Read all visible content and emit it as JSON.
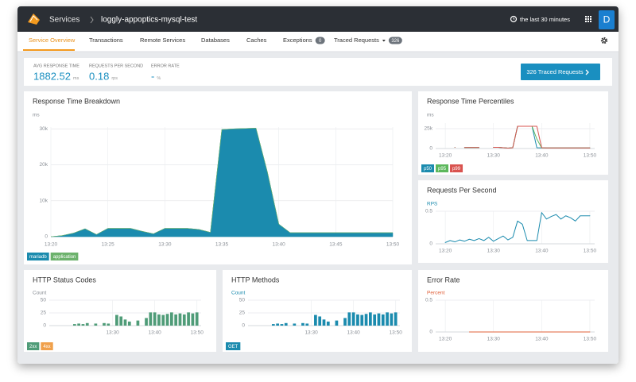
{
  "header": {
    "section": "Services",
    "service": "loggly-appoptics-mysql-test",
    "time_range": "the last 30 minutes",
    "avatar": "D"
  },
  "tabs": [
    {
      "label": "Service Overview"
    },
    {
      "label": "Transactions"
    },
    {
      "label": "Remote Services"
    },
    {
      "label": "Databases"
    },
    {
      "label": "Caches"
    },
    {
      "label": "Exceptions",
      "badge": 0
    },
    {
      "label": "Traced Requests",
      "badge": 326
    }
  ],
  "summary": {
    "metrics": [
      {
        "label": "AVG RESPONSE TIME",
        "value": 1882.52,
        "unit": "ms"
      },
      {
        "label": "REQUESTS PER SECOND",
        "value": 0.18,
        "unit": "rps"
      },
      {
        "label": "ERROR RATE",
        "value": "-",
        "unit": "%"
      }
    ],
    "button": "326 Traced Requests"
  },
  "chart_data": [
    {
      "type": "area",
      "stacked": true,
      "title": "Response Time Breakdown",
      "y_label": "ms",
      "grid": true,
      "legend": "bottom-left",
      "x": [
        "13:20",
        "13:21",
        "13:22",
        "13:23",
        "13:24",
        "13:25",
        "13:26",
        "13:27",
        "13:28",
        "13:29",
        "13:30",
        "13:31",
        "13:32",
        "13:33",
        "13:34",
        "13:35",
        "13:36",
        "13:37",
        "13:38",
        "13:39",
        "13:40",
        "13:41",
        "13:42",
        "13:43",
        "13:44",
        "13:45",
        "13:46",
        "13:47",
        "13:48",
        "13:49",
        "13:50"
      ],
      "series": [
        {
          "name": "mariadb",
          "color": "#1b8bae",
          "values": [
            0,
            300,
            1000,
            2200,
            600,
            2300,
            2300,
            2300,
            1500,
            800,
            2300,
            2300,
            2300,
            2000,
            1200,
            29800,
            30000,
            30100,
            30200,
            18000,
            3500,
            1100,
            1100,
            1100,
            1100,
            1100,
            1100,
            1100,
            1100,
            1100,
            1100
          ]
        },
        {
          "name": "application",
          "color": "#6cb26c",
          "values": [
            0,
            0,
            0,
            0,
            0,
            0,
            0,
            0,
            0,
            0,
            0,
            0,
            0,
            0,
            0,
            0,
            0,
            0,
            0,
            0,
            0,
            0,
            0,
            0,
            0,
            0,
            0,
            0,
            0,
            0,
            0
          ]
        }
      ],
      "xlim": [
        "13:20",
        "13:50"
      ],
      "xticks": [
        "13:20",
        "13:25",
        "13:30",
        "13:35",
        "13:40",
        "13:45",
        "13:50"
      ],
      "ylim": [
        0,
        30500
      ],
      "yticks": [
        0,
        {
          "value": 10000,
          "label": "10k"
        },
        {
          "value": 20000,
          "label": "20k"
        },
        {
          "value": 30000,
          "label": "30k"
        }
      ]
    },
    {
      "type": "line",
      "title": "Response Time Percentiles",
      "y_label": "ms",
      "grid": true,
      "legend": "bottom-left",
      "x": [
        "13:20",
        "13:21",
        "13:22",
        "13:23",
        "13:24",
        "13:25",
        "13:26",
        "13:27",
        "13:28",
        "13:29",
        "13:30",
        "13:31",
        "13:32",
        "13:33",
        "13:34",
        "13:35",
        "13:36",
        "13:37",
        "13:38",
        "13:39",
        "13:40",
        "13:41",
        "13:42",
        "13:43",
        "13:44",
        "13:45",
        "13:46",
        "13:47",
        "13:48",
        "13:49",
        "13:50"
      ],
      "series": [
        {
          "name": "p50",
          "color": "#1b8bae",
          "values": [
            null,
            null,
            1500,
            null,
            1200,
            1200,
            1200,
            1200,
            null,
            null,
            1500,
            1500,
            1000,
            500,
            1000,
            28000,
            28000,
            28000,
            28000,
            1000,
            800,
            800,
            800,
            800,
            800,
            800,
            800,
            800,
            800,
            800,
            800
          ]
        },
        {
          "name": "p95",
          "color": "#5cb85c",
          "values": [
            null,
            null,
            1500,
            null,
            1200,
            1200,
            1200,
            1200,
            null,
            null,
            1500,
            1500,
            1000,
            500,
            1000,
            28000,
            28000,
            28000,
            28000,
            12000,
            800,
            800,
            800,
            800,
            800,
            800,
            800,
            800,
            800,
            800,
            800
          ]
        },
        {
          "name": "p99",
          "color": "#d9534f",
          "values": [
            null,
            null,
            1500,
            null,
            1200,
            1200,
            1200,
            1200,
            null,
            null,
            1500,
            1500,
            1000,
            500,
            1000,
            28000,
            28000,
            28000,
            28000,
            28000,
            1000,
            800,
            800,
            800,
            800,
            800,
            800,
            800,
            800,
            800,
            800
          ]
        }
      ],
      "xlim": [
        "13:18",
        "13:51"
      ],
      "xticks": [
        "13:20",
        "13:30",
        "13:40",
        "13:50"
      ],
      "ylim": [
        0,
        32000
      ],
      "yticks": [
        0,
        {
          "value": 25000,
          "label": "25k"
        }
      ]
    },
    {
      "type": "line",
      "title": "Requests Per Second",
      "y_label": "RPS",
      "y_label_color": "#1b8bae",
      "grid": true,
      "x": [
        "13:20",
        "13:21",
        "13:22",
        "13:23",
        "13:24",
        "13:25",
        "13:26",
        "13:27",
        "13:28",
        "13:29",
        "13:30",
        "13:31",
        "13:32",
        "13:33",
        "13:34",
        "13:35",
        "13:36",
        "13:37",
        "13:38",
        "13:39",
        "13:40",
        "13:41",
        "13:42",
        "13:43",
        "13:44",
        "13:45",
        "13:46",
        "13:47",
        "13:48",
        "13:49",
        "13:50"
      ],
      "series": [
        {
          "color": "#1b8bae",
          "values": [
            0.02,
            0.05,
            0.03,
            0.06,
            0.04,
            0.07,
            0.05,
            0.08,
            0.05,
            0.1,
            0.04,
            0.08,
            0.12,
            0.06,
            0.1,
            0.35,
            0.3,
            0.05,
            0.05,
            0.05,
            0.48,
            0.38,
            0.42,
            0.45,
            0.38,
            0.43,
            0.4,
            0.35,
            0.43,
            0.43,
            0.43
          ]
        }
      ],
      "xlim": [
        "13:18",
        "13:51"
      ],
      "xticks": [
        "13:20",
        "13:30",
        "13:40",
        "13:50"
      ],
      "ylim": [
        0,
        0.5
      ],
      "yticks": [
        0,
        0.5
      ]
    },
    {
      "type": "bar",
      "stacked": true,
      "title": "HTTP Status Codes",
      "y_label": "Count",
      "grid": true,
      "legend": "bottom-left",
      "x": [
        "13:20",
        "13:21",
        "13:22",
        "13:23",
        "13:24",
        "13:25",
        "13:26",
        "13:27",
        "13:28",
        "13:29",
        "13:30",
        "13:31",
        "13:32",
        "13:33",
        "13:34",
        "13:35",
        "13:36",
        "13:37",
        "13:38",
        "13:39",
        "13:40",
        "13:41",
        "13:42",
        "13:43",
        "13:44",
        "13:45",
        "13:46",
        "13:47",
        "13:48",
        "13:49",
        "13:50"
      ],
      "series": [
        {
          "name": "2xx",
          "color": "#4f9c78",
          "values": [
            null,
            3,
            4,
            3,
            5,
            null,
            4,
            null,
            5,
            4,
            null,
            21,
            18,
            12,
            8,
            null,
            10,
            null,
            15,
            26,
            26,
            22,
            21,
            23,
            26,
            22,
            24,
            22,
            26,
            24,
            26
          ]
        },
        {
          "name": "4xx",
          "color": "#f0a04b",
          "values": [
            0,
            0,
            0,
            0,
            0,
            0,
            0,
            0,
            0,
            0,
            0,
            0,
            0,
            0,
            0,
            0,
            0,
            0,
            0,
            0,
            0,
            0,
            0,
            0,
            0,
            0,
            0,
            0,
            0,
            0,
            0
          ]
        }
      ],
      "xlim": [
        "13:15",
        "13:51"
      ],
      "xticks": [
        "13:30",
        "13:40",
        "13:50"
      ],
      "ylim": [
        0,
        50
      ],
      "yticks": [
        0,
        25,
        50
      ]
    },
    {
      "type": "bar",
      "title": "HTTP Methods",
      "y_label": "Count",
      "y_label_color": "#1b8bae",
      "grid": true,
      "legend": "bottom-left",
      "x": [
        "13:20",
        "13:21",
        "13:22",
        "13:23",
        "13:24",
        "13:25",
        "13:26",
        "13:27",
        "13:28",
        "13:29",
        "13:30",
        "13:31",
        "13:32",
        "13:33",
        "13:34",
        "13:35",
        "13:36",
        "13:37",
        "13:38",
        "13:39",
        "13:40",
        "13:41",
        "13:42",
        "13:43",
        "13:44",
        "13:45",
        "13:46",
        "13:47",
        "13:48",
        "13:49",
        "13:50"
      ],
      "series": [
        {
          "name": "GET",
          "color": "#1b8bae",
          "values": [
            null,
            3,
            4,
            3,
            5,
            null,
            4,
            null,
            5,
            4,
            null,
            21,
            18,
            12,
            8,
            null,
            10,
            null,
            15,
            26,
            26,
            22,
            21,
            23,
            26,
            22,
            24,
            22,
            26,
            24,
            26
          ]
        }
      ],
      "xlim": [
        "13:15",
        "13:51"
      ],
      "xticks": [
        "13:30",
        "13:40",
        "13:50"
      ],
      "ylim": [
        0,
        50
      ],
      "yticks": [
        0,
        25,
        50
      ]
    },
    {
      "type": "line",
      "title": "Error Rate",
      "y_label": "Percent",
      "y_label_color": "#e0603a",
      "grid": true,
      "x": [
        "13:20",
        "13:21",
        "13:22",
        "13:23",
        "13:24",
        "13:25",
        "13:26",
        "13:27",
        "13:28",
        "13:29",
        "13:30",
        "13:31",
        "13:32",
        "13:33",
        "13:34",
        "13:35",
        "13:36",
        "13:37",
        "13:38",
        "13:39",
        "13:40",
        "13:41",
        "13:42",
        "13:43",
        "13:44",
        "13:45",
        "13:46",
        "13:47",
        "13:48",
        "13:49",
        "13:50"
      ],
      "series": [
        {
          "color": "#e0603a",
          "values": [
            null,
            null,
            null,
            null,
            null,
            0,
            0,
            0,
            0,
            0,
            0,
            0,
            0,
            0,
            0,
            0,
            0,
            0,
            0,
            0,
            0,
            0,
            0,
            0,
            0,
            0,
            0,
            0,
            0,
            0,
            0
          ]
        }
      ],
      "xlim": [
        "13:18",
        "13:51"
      ],
      "xticks": [
        "13:20",
        "13:30",
        "13:40",
        "13:50"
      ],
      "ylim": [
        0,
        0.5
      ],
      "yticks": [
        0,
        0.5
      ]
    }
  ]
}
